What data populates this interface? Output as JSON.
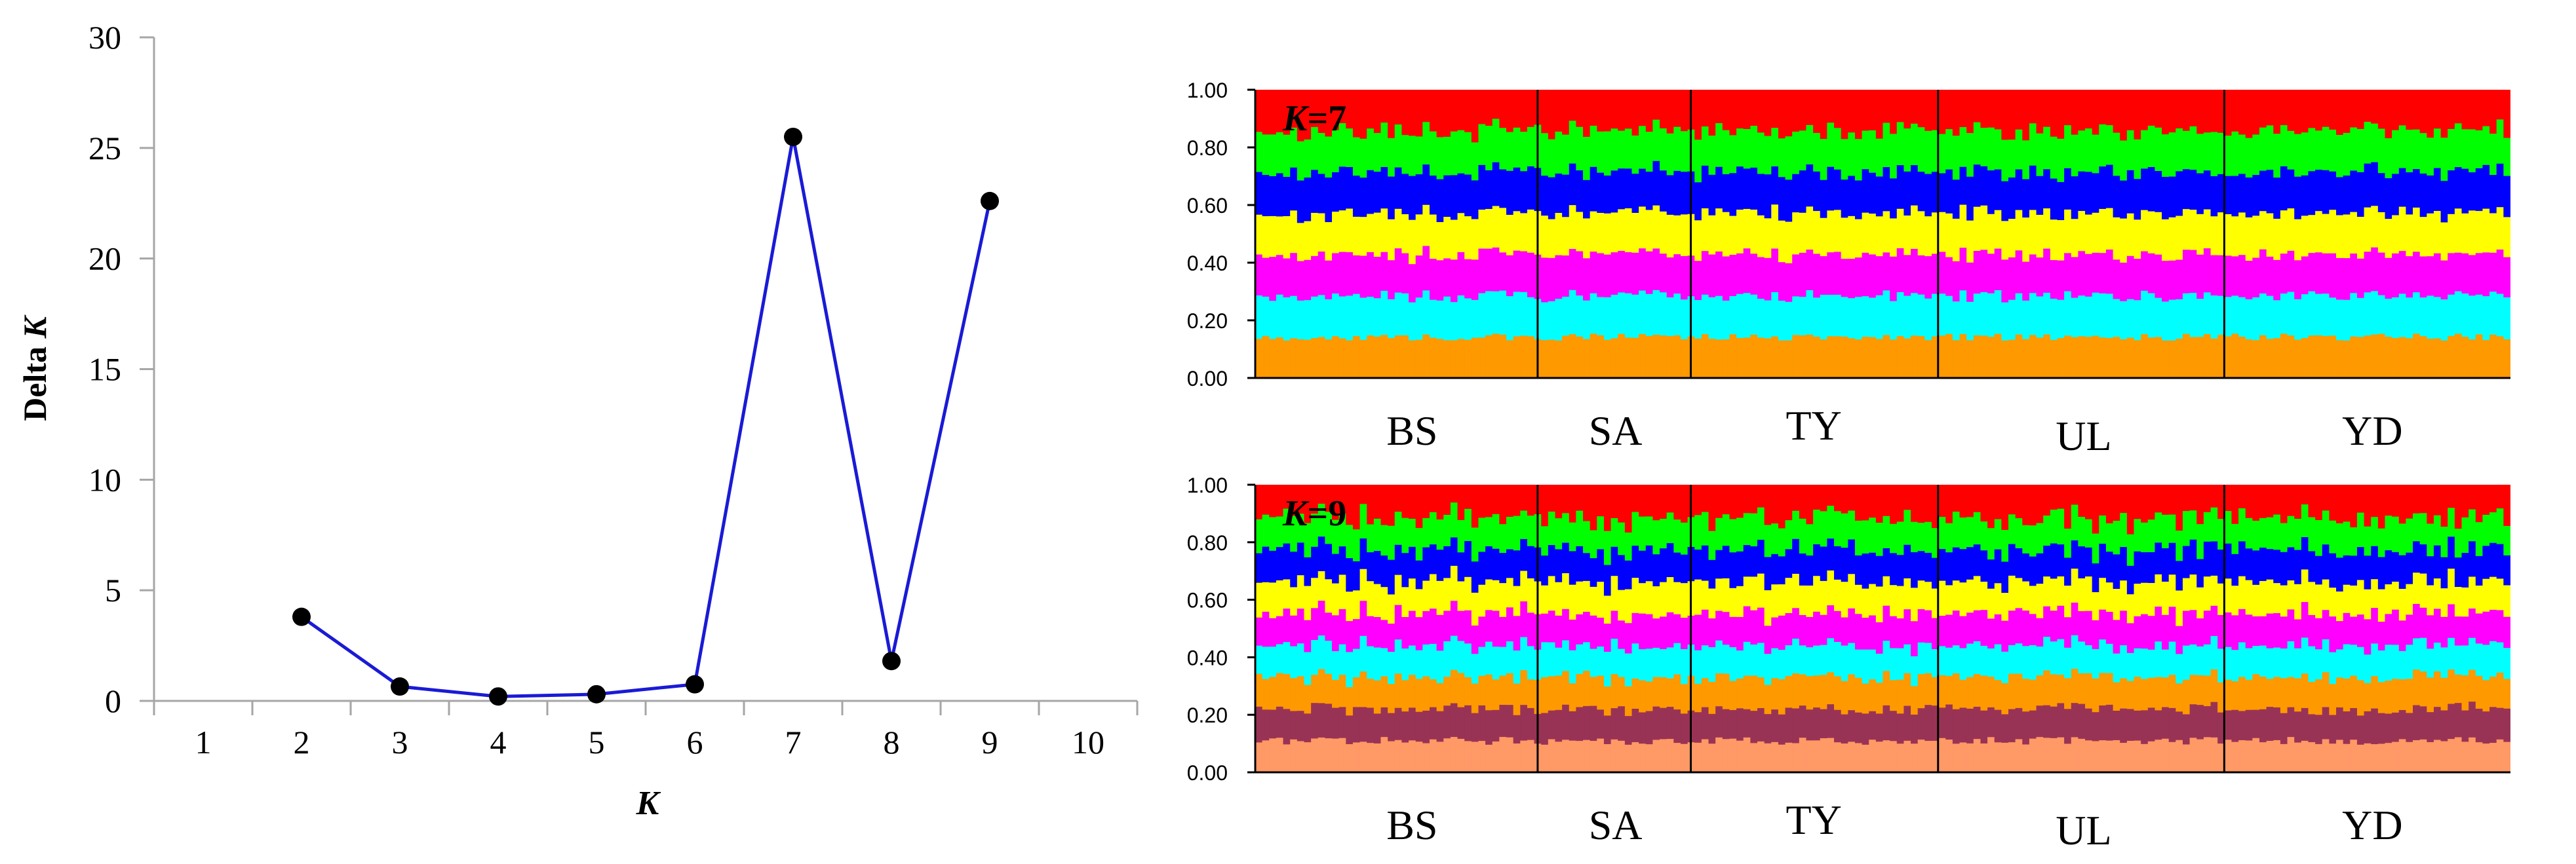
{
  "chart_data": [
    {
      "type": "line",
      "title": "",
      "xlabel": "K",
      "ylabel": "Delta K",
      "x_ticks": [
        "1",
        "2",
        "3",
        "4",
        "5",
        "6",
        "7",
        "8",
        "9",
        "10"
      ],
      "y_ticks": [
        "0",
        "5",
        "10",
        "15",
        "20",
        "25",
        "30"
      ],
      "xlim": [
        0.5,
        10.5
      ],
      "ylim": [
        0,
        30
      ],
      "grid": false,
      "line_color": "#1a1ad6",
      "marker_color": "#000000",
      "series": [
        {
          "name": "Delta K",
          "x": [
            2,
            3,
            4,
            5,
            6,
            7,
            8,
            9
          ],
          "y": [
            3.8,
            0.65,
            0.2,
            0.3,
            0.75,
            25.5,
            1.8,
            22.6
          ]
        }
      ]
    },
    {
      "type": "bar",
      "stacked": true,
      "panel_label": "K=7",
      "label_prefix": "K",
      "label_suffix": "=7",
      "populations": [
        "BS",
        "SA",
        "TY",
        "UL",
        "YD"
      ],
      "y_ticks": [
        "0.00",
        "0.20",
        "0.40",
        "0.60",
        "0.80",
        "1.00"
      ],
      "ylim": [
        0,
        1
      ],
      "cluster_colors": [
        "#ff9900",
        "#00ffff",
        "#ff00ff",
        "#ffff00",
        "#0000ff",
        "#00ff00",
        "#ff0000"
      ],
      "cluster_proportions": [
        0.143,
        0.143,
        0.143,
        0.143,
        0.143,
        0.143,
        0.142
      ]
    },
    {
      "type": "bar",
      "stacked": true,
      "panel_label": "K=9",
      "label_prefix": "K",
      "label_suffix": "=9",
      "populations": [
        "BS",
        "SA",
        "TY",
        "UL",
        "YD"
      ],
      "y_ticks": [
        "0.00",
        "0.20",
        "0.40",
        "0.60",
        "0.80",
        "1.00"
      ],
      "ylim": [
        0,
        1
      ],
      "cluster_colors": [
        "#ff9966",
        "#993355",
        "#ff9900",
        "#00ffff",
        "#ff00ff",
        "#ffff00",
        "#0000ff",
        "#00ff00",
        "#ff0000"
      ],
      "cluster_proportions": [
        0.111,
        0.111,
        0.111,
        0.111,
        0.111,
        0.111,
        0.111,
        0.111,
        0.112
      ]
    }
  ]
}
